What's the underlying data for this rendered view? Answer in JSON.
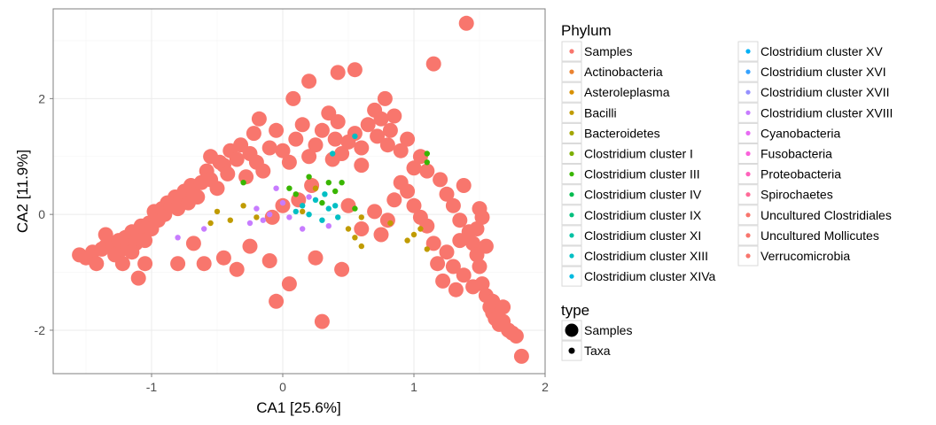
{
  "chart_data": {
    "type": "scatter",
    "xlabel": "CA1   [25.6%]",
    "ylabel": "CA2   [11.9%]",
    "xlim": [
      -1.75,
      2.0
    ],
    "ylim": [
      -2.75,
      3.55
    ],
    "xticks": [
      -1,
      0,
      1,
      2
    ],
    "xtick_labels": [
      "-1",
      "0",
      "1",
      "2"
    ],
    "yticks": [
      -2,
      0,
      2
    ],
    "ytick_labels": [
      "-2",
      "0",
      "2"
    ],
    "grid": true,
    "legend_placement": "right",
    "legends": {
      "color": {
        "title": "Phylum",
        "entries": [
          {
            "label": "Samples",
            "color": "#F8766D"
          },
          {
            "label": "Actinobacteria",
            "color": "#EA8331"
          },
          {
            "label": "Asteroleplasma",
            "color": "#D89000"
          },
          {
            "label": "Bacilli",
            "color": "#C09B00"
          },
          {
            "label": "Bacteroidetes",
            "color": "#A3A500"
          },
          {
            "label": "Clostridium cluster I",
            "color": "#7CAE00"
          },
          {
            "label": "Clostridium cluster III",
            "color": "#39B600"
          },
          {
            "label": "Clostridium cluster IV",
            "color": "#00BB4E"
          },
          {
            "label": "Clostridium cluster IX",
            "color": "#00BF7D"
          },
          {
            "label": "Clostridium cluster XI",
            "color": "#00C1A3"
          },
          {
            "label": "Clostridium cluster XIII",
            "color": "#00BFC4"
          },
          {
            "label": "Clostridium cluster XIVa",
            "color": "#00BAE0"
          },
          {
            "label": "Clostridium cluster XV",
            "color": "#00B0F6"
          },
          {
            "label": "Clostridium cluster XVI",
            "color": "#35A2FF"
          },
          {
            "label": "Clostridium cluster XVII",
            "color": "#9590FF"
          },
          {
            "label": "Clostridium cluster XVIII",
            "color": "#C77CFF"
          },
          {
            "label": "Cyanobacteria",
            "color": "#E76BF3"
          },
          {
            "label": "Fusobacteria",
            "color": "#FA62DB"
          },
          {
            "label": "Proteobacteria",
            "color": "#FF62BC"
          },
          {
            "label": "Spirochaetes",
            "color": "#FF6A98"
          },
          {
            "label": "Uncultured Clostridiales",
            "color": "#F8766D"
          },
          {
            "label": "Uncultured Mollicutes",
            "color": "#F8766D"
          },
          {
            "label": "Verrucomicrobia",
            "color": "#F8766D"
          }
        ]
      },
      "size": {
        "title": "type",
        "entries": [
          "Samples",
          "Taxa"
        ]
      }
    },
    "series": [
      {
        "name": "Samples",
        "type": "Samples",
        "color": "#F8766D",
        "points": [
          [
            -1.55,
            -0.7
          ],
          [
            -1.5,
            -0.75
          ],
          [
            -1.45,
            -0.65
          ],
          [
            -1.42,
            -0.85
          ],
          [
            -1.38,
            -0.6
          ],
          [
            -1.35,
            -0.55
          ],
          [
            -1.3,
            -0.5
          ],
          [
            -1.28,
            -0.7
          ],
          [
            -1.25,
            -0.45
          ],
          [
            -1.22,
            -0.6
          ],
          [
            -1.2,
            -0.4
          ],
          [
            -1.18,
            -0.55
          ],
          [
            -1.15,
            -0.3
          ],
          [
            -1.12,
            -0.5
          ],
          [
            -1.1,
            -0.35
          ],
          [
            -1.08,
            -0.2
          ],
          [
            -1.05,
            -0.45
          ],
          [
            -1.02,
            -0.15
          ],
          [
            -1.0,
            -0.25
          ],
          [
            -0.98,
            0.05
          ],
          [
            -0.95,
            -0.1
          ],
          [
            -0.92,
            0.1
          ],
          [
            -0.9,
            0.0
          ],
          [
            -0.88,
            0.2
          ],
          [
            -0.85,
            0.15
          ],
          [
            -0.82,
            0.3
          ],
          [
            -0.8,
            0.1
          ],
          [
            -0.78,
            0.25
          ],
          [
            -0.75,
            0.4
          ],
          [
            -0.72,
            0.2
          ],
          [
            -0.7,
            0.5
          ],
          [
            -0.68,
            0.35
          ],
          [
            -0.65,
            0.3
          ],
          [
            -0.62,
            0.55
          ],
          [
            -0.58,
            0.75
          ],
          [
            -0.55,
            0.6
          ],
          [
            -0.5,
            0.45
          ],
          [
            -0.48,
            0.9
          ],
          [
            -0.45,
            0.85
          ],
          [
            -0.42,
            0.7
          ],
          [
            -0.4,
            1.1
          ],
          [
            -0.35,
            0.95
          ],
          [
            -0.32,
            1.2
          ],
          [
            -0.28,
            0.65
          ],
          [
            -0.25,
            1.05
          ],
          [
            -0.22,
            1.4
          ],
          [
            -0.2,
            0.9
          ],
          [
            -0.15,
            0.75
          ],
          [
            -0.1,
            1.15
          ],
          [
            -0.05,
            1.45
          ],
          [
            0.0,
            1.1
          ],
          [
            0.05,
            0.9
          ],
          [
            0.1,
            1.3
          ],
          [
            0.15,
            1.55
          ],
          [
            0.2,
            1.0
          ],
          [
            0.25,
            1.2
          ],
          [
            0.3,
            1.45
          ],
          [
            0.35,
            1.75
          ],
          [
            0.38,
            0.95
          ],
          [
            0.4,
            1.3
          ],
          [
            0.42,
            1.6
          ],
          [
            0.45,
            1.05
          ],
          [
            0.5,
            1.25
          ],
          [
            0.55,
            1.4
          ],
          [
            0.6,
            1.15
          ],
          [
            0.65,
            1.55
          ],
          [
            0.7,
            1.8
          ],
          [
            0.72,
            1.35
          ],
          [
            0.75,
            1.65
          ],
          [
            0.8,
            1.2
          ],
          [
            0.82,
            1.45
          ],
          [
            0.85,
            1.7
          ],
          [
            0.9,
            1.1
          ],
          [
            0.95,
            1.3
          ],
          [
            1.0,
            0.8
          ],
          [
            1.05,
            1.0
          ],
          [
            1.1,
            0.75
          ],
          [
            1.15,
            2.6
          ],
          [
            1.2,
            0.6
          ],
          [
            1.25,
            0.35
          ],
          [
            1.3,
            0.15
          ],
          [
            1.35,
            -0.1
          ],
          [
            1.4,
            3.3
          ],
          [
            1.42,
            -0.3
          ],
          [
            1.45,
            -0.5
          ],
          [
            1.48,
            -0.7
          ],
          [
            1.5,
            -0.9
          ],
          [
            1.52,
            -1.2
          ],
          [
            1.55,
            -1.4
          ],
          [
            1.58,
            -1.6
          ],
          [
            1.6,
            -1.7
          ],
          [
            1.62,
            -1.8
          ],
          [
            1.65,
            -1.9
          ],
          [
            1.68,
            -1.85
          ],
          [
            1.72,
            -2.0
          ],
          [
            1.75,
            -2.05
          ],
          [
            1.78,
            -2.1
          ],
          [
            1.82,
            -2.45
          ],
          [
            -1.22,
            -0.85
          ],
          [
            -1.1,
            -1.1
          ],
          [
            -0.8,
            -0.85
          ],
          [
            -0.68,
            -0.5
          ],
          [
            -0.6,
            -0.85
          ],
          [
            -0.45,
            -0.75
          ],
          [
            -0.35,
            -0.95
          ],
          [
            -0.25,
            -0.55
          ],
          [
            -0.1,
            -0.8
          ],
          [
            0.05,
            -1.2
          ],
          [
            -0.05,
            -1.5
          ],
          [
            0.25,
            -0.75
          ],
          [
            0.3,
            -1.85
          ],
          [
            0.45,
            -0.95
          ],
          [
            0.6,
            -0.25
          ],
          [
            0.7,
            0.05
          ],
          [
            0.75,
            -0.35
          ],
          [
            0.8,
            -0.1
          ],
          [
            0.85,
            0.25
          ],
          [
            0.9,
            0.55
          ],
          [
            0.95,
            0.4
          ],
          [
            1.0,
            0.15
          ],
          [
            1.05,
            -0.05
          ],
          [
            1.1,
            -0.2
          ],
          [
            1.15,
            -0.5
          ],
          [
            1.18,
            -0.85
          ],
          [
            1.22,
            -1.15
          ],
          [
            1.25,
            -0.65
          ],
          [
            1.3,
            -0.9
          ],
          [
            1.35,
            -0.45
          ],
          [
            1.38,
            -1.05
          ],
          [
            1.45,
            -1.25
          ],
          [
            1.48,
            -0.25
          ],
          [
            1.52,
            -0.05
          ],
          [
            1.55,
            -0.55
          ],
          [
            1.6,
            -1.5
          ],
          [
            1.68,
            -1.6
          ],
          [
            1.5,
            0.1
          ],
          [
            1.38,
            0.5
          ],
          [
            1.32,
            -1.3
          ],
          [
            0.22,
            0.5
          ],
          [
            0.0,
            0.15
          ],
          [
            0.5,
            0.15
          ],
          [
            0.6,
            0.85
          ],
          [
            -0.08,
            -0.05
          ],
          [
            0.12,
            0.25
          ],
          [
            -1.05,
            -0.85
          ],
          [
            -1.15,
            -0.65
          ],
          [
            -1.35,
            -0.35
          ],
          [
            0.55,
            2.5
          ],
          [
            0.78,
            2.0
          ],
          [
            0.2,
            2.3
          ],
          [
            0.08,
            2.0
          ],
          [
            0.42,
            2.45
          ],
          [
            -0.18,
            1.65
          ],
          [
            -0.55,
            1.0
          ]
        ]
      },
      {
        "name": "Taxa",
        "type": "Taxa",
        "color": "#C09B00",
        "points": [
          [
            -0.55,
            -0.15
          ],
          [
            -0.5,
            0.05
          ],
          [
            -0.4,
            -0.1
          ],
          [
            -0.3,
            0.15
          ],
          [
            -0.2,
            -0.05
          ],
          [
            0.15,
            0.05
          ],
          [
            0.25,
            0.45
          ],
          [
            0.5,
            -0.25
          ],
          [
            0.55,
            -0.4
          ],
          [
            0.6,
            -0.55
          ],
          [
            0.95,
            -0.45
          ],
          [
            1.0,
            -0.35
          ],
          [
            1.05,
            -0.25
          ],
          [
            1.1,
            -0.6
          ],
          [
            0.6,
            -0.05
          ],
          [
            0.82,
            -0.15
          ]
        ]
      },
      {
        "name": "Taxa",
        "type": "Taxa",
        "color": "#39B600",
        "points": [
          [
            -0.3,
            0.55
          ],
          [
            0.1,
            0.35
          ],
          [
            0.2,
            0.65
          ],
          [
            0.3,
            0.2
          ],
          [
            0.35,
            0.55
          ],
          [
            0.4,
            0.4
          ],
          [
            0.45,
            0.55
          ],
          [
            1.1,
            1.05
          ],
          [
            1.1,
            0.9
          ],
          [
            0.55,
            0.1
          ],
          [
            0.05,
            0.45
          ]
        ]
      },
      {
        "name": "Taxa",
        "type": "Taxa",
        "color": "#00BFC4",
        "points": [
          [
            0.15,
            0.15
          ],
          [
            0.2,
            0.0
          ],
          [
            0.25,
            0.25
          ],
          [
            0.3,
            -0.1
          ],
          [
            0.35,
            0.1
          ],
          [
            0.38,
            1.05
          ],
          [
            0.55,
            1.35
          ],
          [
            0.4,
            0.15
          ],
          [
            0.1,
            0.05
          ],
          [
            0.42,
            -0.05
          ],
          [
            0.32,
            0.35
          ]
        ]
      },
      {
        "name": "Taxa",
        "type": "Taxa",
        "color": "#C77CFF",
        "points": [
          [
            -0.8,
            -0.4
          ],
          [
            -0.6,
            -0.25
          ],
          [
            -0.2,
            0.1
          ],
          [
            -0.15,
            -0.1
          ],
          [
            -0.1,
            0.0
          ],
          [
            0.0,
            0.2
          ],
          [
            0.05,
            -0.05
          ],
          [
            0.15,
            -0.25
          ],
          [
            0.2,
            0.3
          ],
          [
            0.35,
            -0.2
          ],
          [
            -0.25,
            -0.15
          ],
          [
            -0.05,
            0.45
          ]
        ]
      }
    ]
  }
}
